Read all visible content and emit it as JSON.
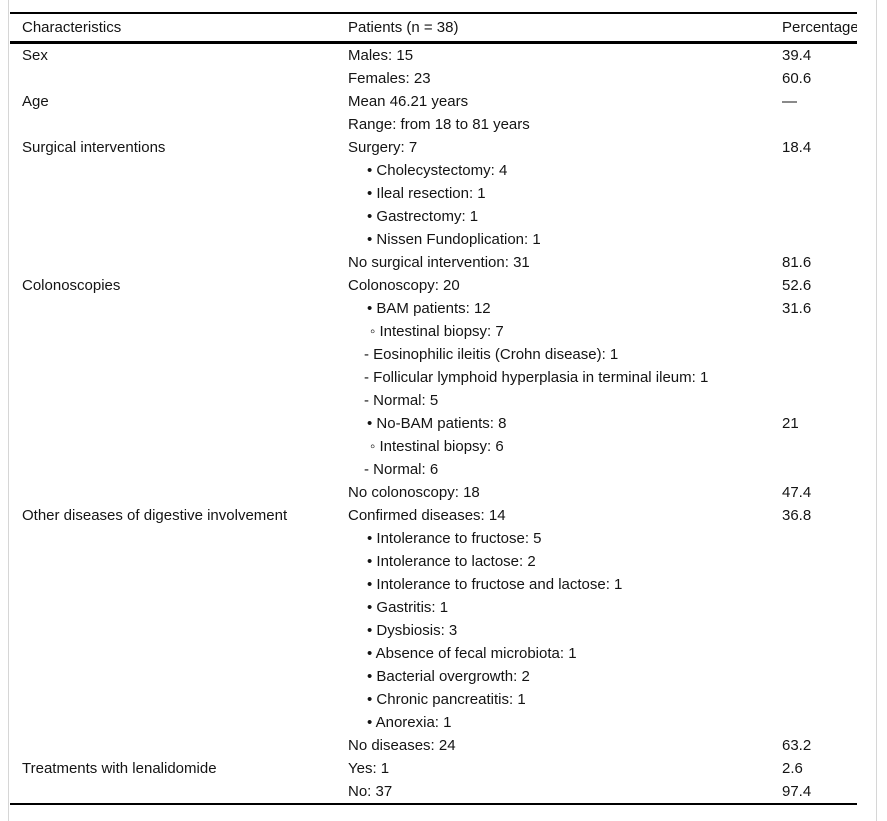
{
  "colors": {
    "rule": "#000000",
    "text": "#141414",
    "page_edge": "#d6d6d6",
    "background": "#ffffff"
  },
  "table": {
    "headers": [
      "Characteristics",
      "Patients (n = 38)",
      "Percentage"
    ],
    "rows": [
      {
        "characteristic": "Sex",
        "patients": "Males: 15",
        "indent": 0,
        "percentage": "39.4"
      },
      {
        "characteristic": "",
        "patients": "Females: 23",
        "indent": 0,
        "percentage": "60.6"
      },
      {
        "characteristic": "Age",
        "patients": "Mean 46.21 years",
        "indent": 0,
        "percentage": "—"
      },
      {
        "characteristic": "",
        "patients": "Range: from 18 to 81 years",
        "indent": 0,
        "percentage": ""
      },
      {
        "characteristic": "Surgical interventions",
        "patients": "Surgery: 7",
        "indent": 0,
        "percentage": "18.4"
      },
      {
        "characteristic": "",
        "patients": "• Cholecystectomy: 4",
        "indent": 1,
        "percentage": ""
      },
      {
        "characteristic": "",
        "patients": "• Ileal resection: 1",
        "indent": 1,
        "percentage": ""
      },
      {
        "characteristic": "",
        "patients": "• Gastrectomy: 1",
        "indent": 1,
        "percentage": ""
      },
      {
        "characteristic": "",
        "patients": "• Nissen Fundoplication: 1",
        "indent": 1,
        "percentage": ""
      },
      {
        "characteristic": "",
        "patients": "No surgical intervention: 31",
        "indent": 0,
        "percentage": "81.6"
      },
      {
        "characteristic": "Colonoscopies",
        "patients": "Colonoscopy: 20",
        "indent": 0,
        "percentage": "52.6"
      },
      {
        "characteristic": "",
        "patients": "• BAM patients: 12",
        "indent": 1,
        "percentage": "31.6"
      },
      {
        "characteristic": "",
        "patients": "◦ Intestinal biopsy: 7",
        "indent": 2,
        "percentage": ""
      },
      {
        "characteristic": "",
        "patients": "- Eosinophilic ileitis (Crohn disease): 1",
        "indent": 3,
        "percentage": ""
      },
      {
        "characteristic": "",
        "patients": "- Follicular lymphoid hyperplasia in terminal ileum: 1",
        "indent": 3,
        "percentage": ""
      },
      {
        "characteristic": "",
        "patients": "- Normal: 5",
        "indent": 3,
        "percentage": ""
      },
      {
        "characteristic": "",
        "patients": "• No-BAM patients: 8",
        "indent": 1,
        "percentage": "21"
      },
      {
        "characteristic": "",
        "patients": "◦ Intestinal biopsy: 6",
        "indent": 2,
        "percentage": ""
      },
      {
        "characteristic": "",
        "patients": "- Normal: 6",
        "indent": 3,
        "percentage": ""
      },
      {
        "characteristic": "",
        "patients": "No colonoscopy: 18",
        "indent": 0,
        "percentage": "47.4"
      },
      {
        "characteristic": "Other diseases of digestive involvement",
        "patients": "Confirmed diseases: 14",
        "indent": 0,
        "percentage": "36.8"
      },
      {
        "characteristic": "",
        "patients": "• Intolerance to fructose: 5",
        "indent": 1,
        "percentage": ""
      },
      {
        "characteristic": "",
        "patients": "• Intolerance to lactose: 2",
        "indent": 1,
        "percentage": ""
      },
      {
        "characteristic": "",
        "patients": "• Intolerance to fructose and lactose: 1",
        "indent": 1,
        "percentage": ""
      },
      {
        "characteristic": "",
        "patients": "• Gastritis: 1",
        "indent": 1,
        "percentage": ""
      },
      {
        "characteristic": "",
        "patients": "• Dysbiosis: 3",
        "indent": 1,
        "percentage": ""
      },
      {
        "characteristic": "",
        "patients": "• Absence of fecal microbiota: 1",
        "indent": 1,
        "percentage": ""
      },
      {
        "characteristic": "",
        "patients": "• Bacterial overgrowth: 2",
        "indent": 1,
        "percentage": ""
      },
      {
        "characteristic": "",
        "patients": "• Chronic pancreatitis: 1",
        "indent": 1,
        "percentage": ""
      },
      {
        "characteristic": "",
        "patients": "• Anorexia: 1",
        "indent": 1,
        "percentage": ""
      },
      {
        "characteristic": "",
        "patients": "No diseases: 24",
        "indent": 0,
        "percentage": "63.2"
      },
      {
        "characteristic": "Treatments with lenalidomide",
        "patients": "Yes: 1",
        "indent": 0,
        "percentage": "2.6"
      },
      {
        "characteristic": "",
        "patients": "No: 37",
        "indent": 0,
        "percentage": "97.4"
      }
    ]
  }
}
